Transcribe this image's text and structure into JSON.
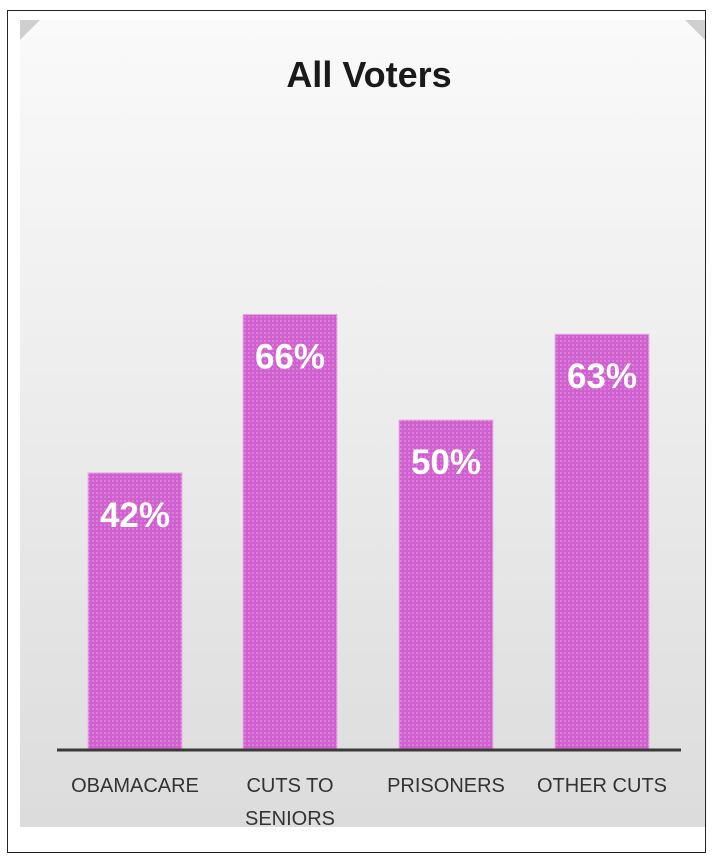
{
  "chart_data": {
    "type": "bar",
    "title": "All Voters",
    "categories": [
      "OBAMACARE",
      "CUTS TO SENIORS",
      "PRISONERS",
      "OTHER CUTS"
    ],
    "category_lines": [
      [
        "OBAMACARE"
      ],
      [
        "CUTS TO",
        "SENIORS"
      ],
      [
        "PRISONERS"
      ],
      [
        "OTHER CUTS"
      ]
    ],
    "values": [
      42,
      66,
      50,
      63
    ],
    "data_labels": [
      "42%",
      "66%",
      "50%",
      "63%"
    ],
    "xlabel": "",
    "ylabel": "",
    "ylim": [
      0,
      100
    ],
    "grid": false,
    "legend": "none",
    "colors": {
      "bar": "#d05fcf",
      "bar_pattern": "#e39be2",
      "axis": "#3a3a3a"
    }
  }
}
